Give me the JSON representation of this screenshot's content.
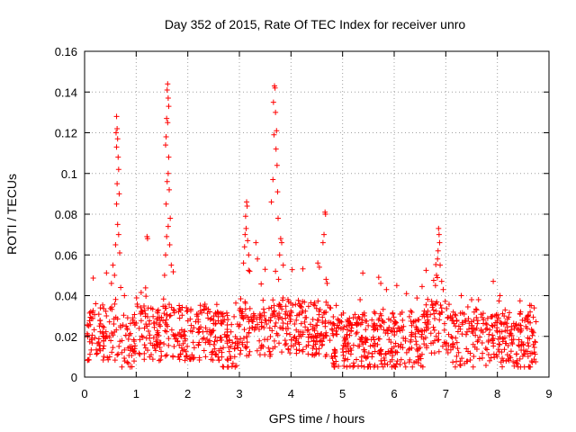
{
  "chart_data": {
    "type": "scatter",
    "title": "Day 352 of 2015, Rate Of TEC Index for receiver unro",
    "xlabel": "GPS time / hours",
    "ylabel": "ROTI / TECUs",
    "xlim": [
      0,
      9
    ],
    "ylim": [
      0,
      0.16
    ],
    "xticks": [
      "0",
      "1",
      "2",
      "3",
      "4",
      "5",
      "6",
      "7",
      "8",
      "9"
    ],
    "yticks": [
      "0",
      "0.02",
      "0.04",
      "0.06",
      "0.08",
      "0.1",
      "0.12",
      "0.14",
      "0.16"
    ],
    "grid": true,
    "marker": "+",
    "color": "#ff0000",
    "series": [
      {
        "name": "ROTI",
        "points": [
          [
            0.62,
            0.128
          ],
          [
            0.63,
            0.122
          ],
          [
            0.61,
            0.12
          ],
          [
            0.64,
            0.117
          ],
          [
            0.62,
            0.113
          ],
          [
            0.65,
            0.108
          ],
          [
            0.66,
            0.102
          ],
          [
            0.63,
            0.095
          ],
          [
            0.67,
            0.09
          ],
          [
            0.62,
            0.085
          ],
          [
            0.64,
            0.075
          ],
          [
            0.66,
            0.07
          ],
          [
            0.6,
            0.065
          ],
          [
            0.68,
            0.061
          ],
          [
            0.55,
            0.055
          ],
          [
            0.58,
            0.05
          ],
          [
            0.52,
            0.046
          ],
          [
            0.7,
            0.044
          ],
          [
            1.21,
            0.069
          ],
          [
            1.22,
            0.068
          ],
          [
            1.61,
            0.144
          ],
          [
            1.6,
            0.141
          ],
          [
            1.62,
            0.137
          ],
          [
            1.63,
            0.133
          ],
          [
            1.59,
            0.127
          ],
          [
            1.61,
            0.125
          ],
          [
            1.58,
            0.118
          ],
          [
            1.57,
            0.114
          ],
          [
            1.63,
            0.108
          ],
          [
            1.62,
            0.1
          ],
          [
            1.6,
            0.096
          ],
          [
            1.64,
            0.092
          ],
          [
            1.58,
            0.085
          ],
          [
            1.66,
            0.078
          ],
          [
            1.62,
            0.074
          ],
          [
            1.59,
            0.069
          ],
          [
            1.65,
            0.065
          ],
          [
            1.57,
            0.06
          ],
          [
            1.68,
            0.055
          ],
          [
            1.55,
            0.05
          ],
          [
            3.14,
            0.086
          ],
          [
            3.15,
            0.084
          ],
          [
            3.12,
            0.079
          ],
          [
            3.13,
            0.073
          ],
          [
            3.11,
            0.07
          ],
          [
            3.16,
            0.067
          ],
          [
            3.1,
            0.064
          ],
          [
            3.18,
            0.06
          ],
          [
            3.08,
            0.056
          ],
          [
            3.2,
            0.052
          ],
          [
            3.32,
            0.066
          ],
          [
            3.35,
            0.058
          ],
          [
            3.68,
            0.143
          ],
          [
            3.69,
            0.142
          ],
          [
            3.66,
            0.135
          ],
          [
            3.7,
            0.13
          ],
          [
            3.72,
            0.121
          ],
          [
            3.67,
            0.119
          ],
          [
            3.71,
            0.112
          ],
          [
            3.73,
            0.104
          ],
          [
            3.65,
            0.097
          ],
          [
            3.74,
            0.091
          ],
          [
            3.62,
            0.086
          ],
          [
            3.75,
            0.078
          ],
          [
            3.8,
            0.068
          ],
          [
            3.82,
            0.066
          ],
          [
            3.78,
            0.06
          ],
          [
            3.85,
            0.055
          ],
          [
            3.7,
            0.052
          ],
          [
            3.76,
            0.048
          ],
          [
            4.52,
            0.056
          ],
          [
            4.55,
            0.054
          ],
          [
            4.62,
            0.066
          ],
          [
            4.64,
            0.07
          ],
          [
            4.66,
            0.081
          ],
          [
            4.67,
            0.08
          ],
          [
            4.68,
            0.048
          ],
          [
            4.7,
            0.046
          ],
          [
            5.7,
            0.049
          ],
          [
            5.74,
            0.046
          ],
          [
            5.85,
            0.043
          ],
          [
            6.05,
            0.045
          ],
          [
            6.86,
            0.073
          ],
          [
            6.87,
            0.07
          ],
          [
            6.88,
            0.066
          ],
          [
            6.85,
            0.062
          ],
          [
            6.84,
            0.058
          ],
          [
            6.89,
            0.055
          ],
          [
            6.82,
            0.05
          ],
          [
            6.92,
            0.047
          ],
          [
            6.8,
            0.045
          ],
          [
            6.95,
            0.043
          ],
          [
            7.3,
            0.04
          ],
          [
            7.5,
            0.038
          ],
          [
            7.6,
            0.033
          ],
          [
            7.92,
            0.047
          ],
          [
            8.05,
            0.04
          ],
          [
            8.15,
            0.033
          ],
          [
            8.45,
            0.032
          ]
        ]
      }
    ]
  }
}
